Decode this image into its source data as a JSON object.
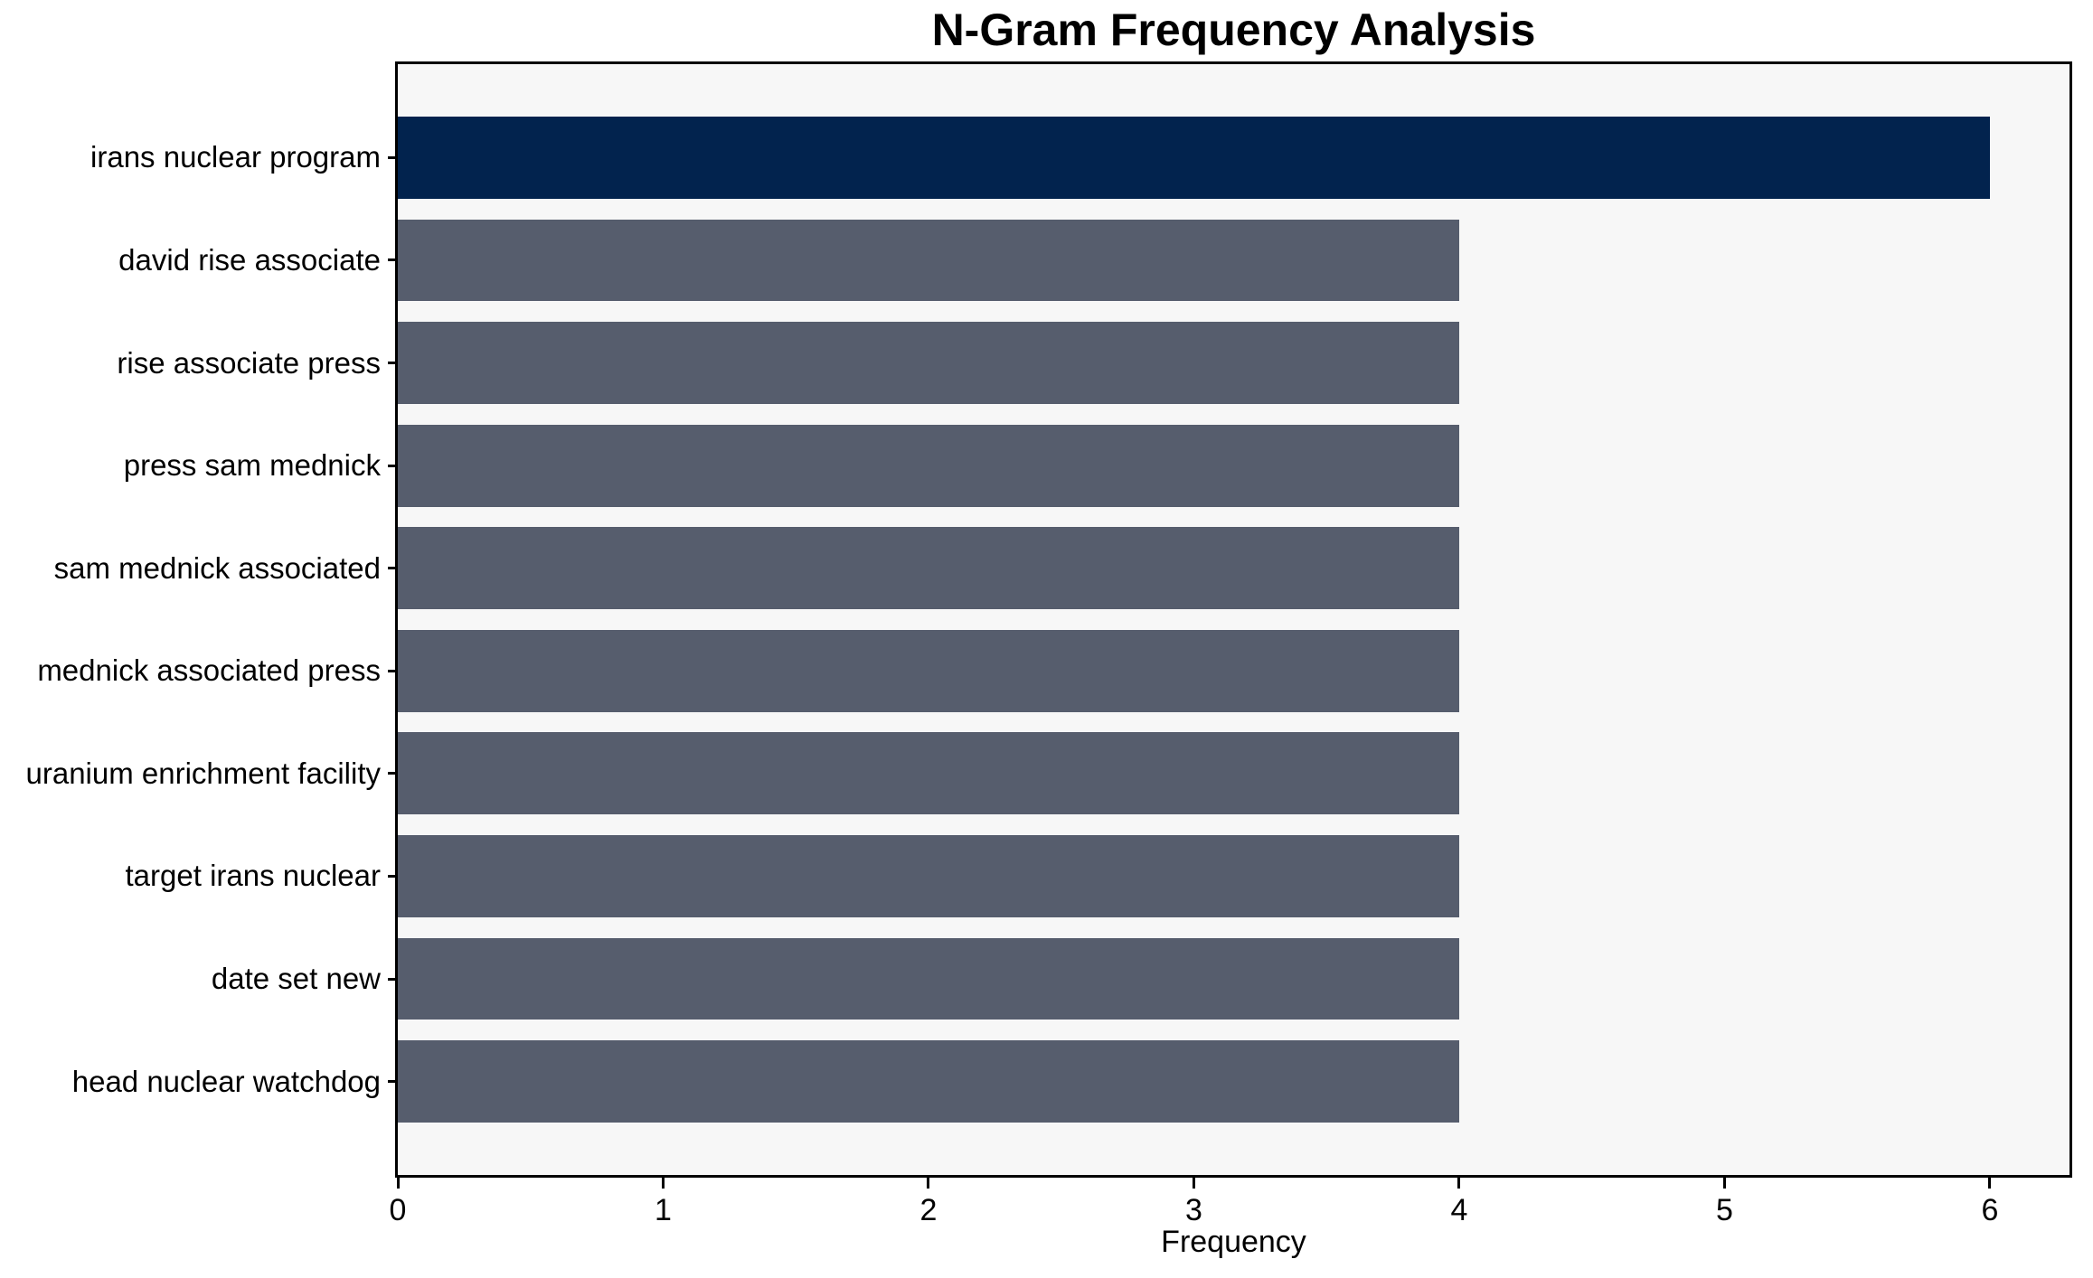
{
  "chart_data": {
    "type": "bar",
    "orientation": "horizontal",
    "title": "N-Gram Frequency Analysis",
    "xlabel": "Frequency",
    "ylabel": "",
    "categories": [
      "irans nuclear program",
      "david rise associate",
      "rise associate press",
      "press sam mednick",
      "sam mednick associated",
      "mednick associated press",
      "uranium enrichment facility",
      "target irans nuclear",
      "date set new",
      "head nuclear watchdog"
    ],
    "values": [
      6,
      4,
      4,
      4,
      4,
      4,
      4,
      4,
      4,
      4
    ],
    "bar_colors": [
      "#02234e",
      "#565d6d",
      "#565d6d",
      "#565d6d",
      "#565d6d",
      "#565d6d",
      "#565d6d",
      "#565d6d",
      "#565d6d",
      "#565d6d"
    ],
    "xlim": [
      0,
      6.3
    ],
    "xticks": [
      0,
      1,
      2,
      3,
      4,
      5,
      6
    ],
    "grid": false,
    "legend": null,
    "colors": {
      "highlight": "#02234e",
      "default_bar": "#565d6d",
      "plot_background": "#f7f7f7",
      "figure_background": "#ffffff",
      "spine": "#000000",
      "text": "#000000"
    }
  }
}
